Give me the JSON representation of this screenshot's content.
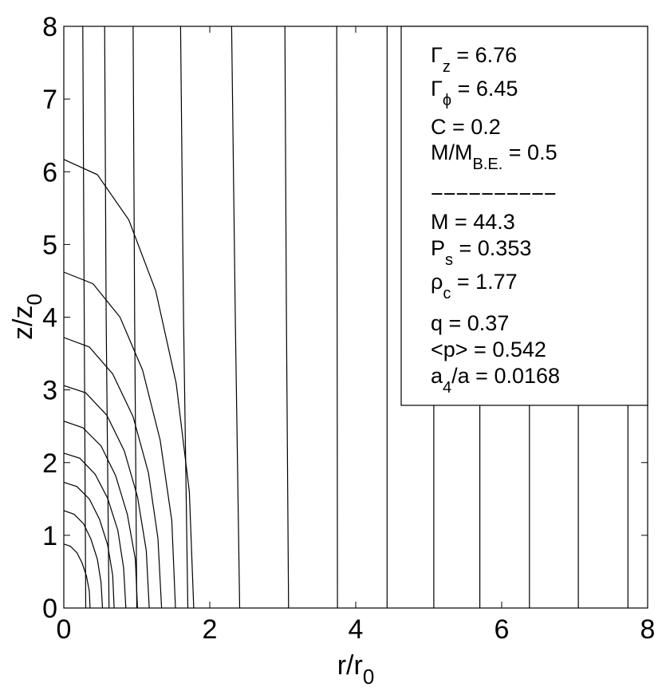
{
  "chart_data": {
    "type": "line",
    "xlabel": {
      "text": "r/r",
      "sub": "0"
    },
    "ylabel": {
      "text": "z/z",
      "sub": "0"
    },
    "xlim": [
      0,
      8
    ],
    "ylim": [
      0,
      8
    ],
    "xticks": [
      0,
      2,
      4,
      6,
      8
    ],
    "yticks": [
      0,
      1,
      2,
      3,
      4,
      5,
      6,
      7,
      8
    ],
    "color": "#000000",
    "series": [
      {
        "x": [
          0,
          0.09,
          0.18,
          0.25,
          0.31,
          0.35,
          0.36
        ],
        "values": [
          0.88,
          0.85,
          0.76,
          0.62,
          0.44,
          0.23,
          0
        ]
      },
      {
        "x": [
          0,
          0.14,
          0.27,
          0.37,
          0.46,
          0.51,
          0.53
        ],
        "values": [
          1.34,
          1.29,
          1.16,
          0.95,
          0.67,
          0.35,
          0
        ]
      },
      {
        "x": [
          0,
          0.18,
          0.35,
          0.49,
          0.6,
          0.67,
          0.69
        ],
        "values": [
          1.73,
          1.67,
          1.5,
          1.22,
          0.87,
          0.45,
          0
        ]
      },
      {
        "x": [
          0,
          0.22,
          0.43,
          0.6,
          0.74,
          0.82,
          0.85
        ],
        "values": [
          2.13,
          2.06,
          1.84,
          1.51,
          1.07,
          0.55,
          0
        ]
      },
      {
        "x": [
          0,
          0.26,
          0.51,
          0.71,
          0.87,
          0.98,
          1.01
        ],
        "values": [
          2.57,
          2.48,
          2.23,
          1.82,
          1.29,
          0.67,
          0
        ]
      },
      {
        "x": [
          0,
          0.3,
          0.59,
          0.83,
          1.01,
          1.13,
          1.17
        ],
        "values": [
          3.06,
          2.96,
          2.65,
          2.16,
          1.53,
          0.79,
          0
        ]
      },
      {
        "x": [
          0,
          0.35,
          0.67,
          0.95,
          1.16,
          1.29,
          1.34
        ],
        "values": [
          3.72,
          3.59,
          3.22,
          2.63,
          1.86,
          0.96,
          0
        ]
      },
      {
        "x": [
          0,
          0.4,
          0.77,
          1.08,
          1.32,
          1.48,
          1.53
        ],
        "values": [
          4.62,
          4.46,
          4.0,
          3.27,
          2.31,
          1.2,
          0
        ]
      },
      {
        "x": [
          0,
          0.46,
          0.89,
          1.26,
          1.54,
          1.72,
          1.78
        ],
        "values": [
          6.17,
          5.96,
          5.34,
          4.36,
          3.09,
          1.6,
          0
        ]
      },
      {
        "x": [
          0.26,
          0.28,
          0.3
        ],
        "values": [
          8,
          4,
          0
        ]
      },
      {
        "x": [
          0.56,
          0.58,
          0.62
        ],
        "values": [
          8,
          4,
          0
        ]
      },
      {
        "x": [
          0.95,
          0.97,
          1.0
        ],
        "values": [
          8,
          4,
          0
        ]
      },
      {
        "x": [
          1.6,
          1.64,
          1.7
        ],
        "values": [
          8,
          4,
          0
        ]
      },
      {
        "x": [
          2.3,
          2.35,
          2.41
        ],
        "values": [
          8,
          4,
          0
        ]
      },
      {
        "x": [
          3.03,
          3.05,
          3.08
        ],
        "values": [
          8,
          4,
          0
        ]
      },
      {
        "x": [
          3.74,
          3.745,
          3.75
        ],
        "values": [
          8,
          4,
          0
        ]
      },
      {
        "x": [
          4.43,
          4.43
        ],
        "values": [
          8,
          0
        ]
      },
      {
        "x": [
          5.07,
          5.07
        ],
        "values": [
          8,
          0
        ]
      },
      {
        "x": [
          5.7,
          5.7
        ],
        "values": [
          8,
          0
        ]
      },
      {
        "x": [
          6.38,
          6.38
        ],
        "values": [
          8,
          0
        ]
      },
      {
        "x": [
          7.05,
          7.05
        ],
        "values": [
          8,
          0
        ]
      },
      {
        "x": [
          7.73,
          7.73
        ],
        "values": [
          8,
          0
        ]
      }
    ],
    "annotations": [
      [
        {
          "text": "Γ"
        },
        {
          "sub": "z"
        },
        {
          "text": " = 6.76"
        }
      ],
      [
        {
          "text": "Γ"
        },
        {
          "sub": "ϕ"
        },
        {
          "text": " = 6.45"
        }
      ],
      [
        {
          "text": "C = 0.2"
        }
      ],
      [
        {
          "text": "M/M"
        },
        {
          "sub": "B.E."
        },
        {
          "text": " = 0.5"
        }
      ],
      [
        {
          "text": "−−−−−−−−−−"
        }
      ],
      [
        {
          "text": "M = 44.3"
        }
      ],
      [
        {
          "text": "P"
        },
        {
          "sub": "s"
        },
        {
          "text": " = 0.353"
        }
      ],
      [
        {
          "text": "ρ"
        },
        {
          "sub": "c"
        },
        {
          "text": " = 1.77"
        }
      ],
      [
        {
          "text": "q = 0.37"
        }
      ],
      [
        {
          "text": "<p> = 0.542"
        }
      ],
      [
        {
          "text": "a"
        },
        {
          "sub": "4"
        },
        {
          "text": "/a = 0.0168"
        }
      ]
    ]
  }
}
